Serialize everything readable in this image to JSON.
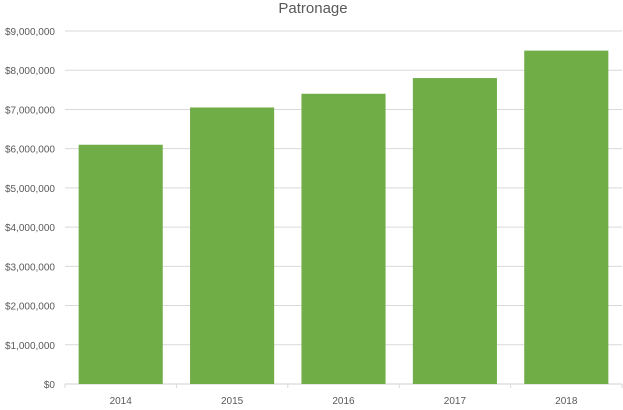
{
  "chart_data": {
    "type": "bar",
    "title": "Patronage",
    "categories": [
      "2014",
      "2015",
      "2016",
      "2017",
      "2018"
    ],
    "values": [
      6100000,
      7050000,
      7400000,
      7800000,
      8500000
    ],
    "y_ticks": [
      "$0",
      "$1,000,000",
      "$2,000,000",
      "$3,000,000",
      "$4,000,000",
      "$5,000,000",
      "$6,000,000",
      "$7,000,000",
      "$8,000,000",
      "$9,000,000"
    ],
    "ylim": [
      0,
      9000000
    ],
    "grid": true,
    "legend": "none",
    "bar_color": "#70ad47",
    "grid_color": "#d9d9d9",
    "text_color": "#595959"
  }
}
